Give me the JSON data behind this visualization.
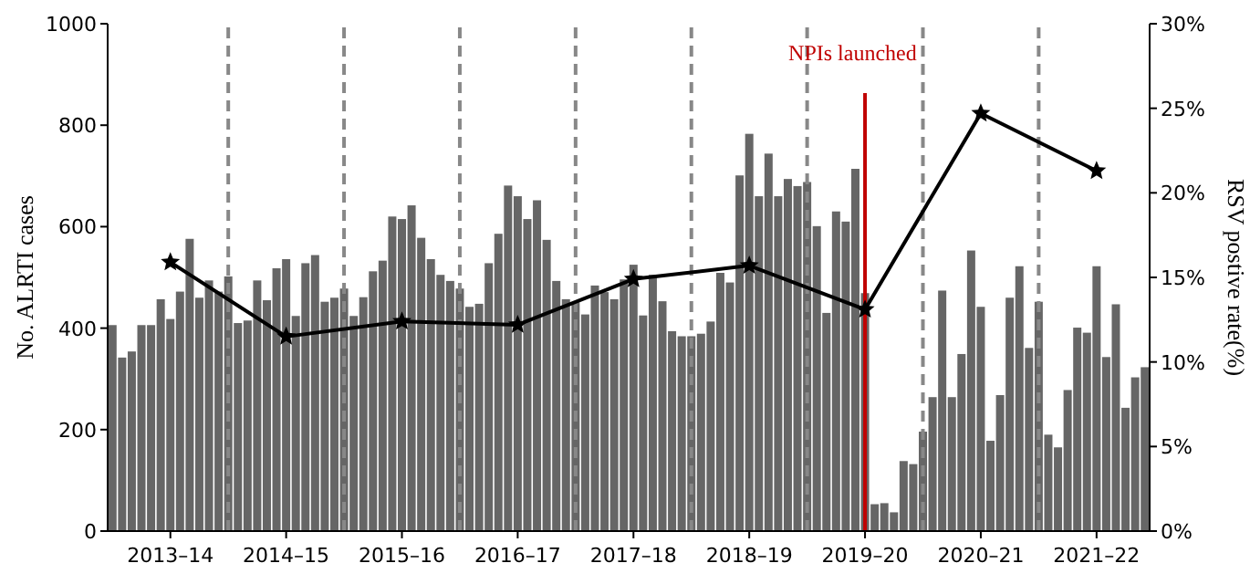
{
  "chart_data": {
    "type": "bar",
    "ylabel": "No. ALRTI cases",
    "y2label": "RSV postive rate(%)",
    "categories": [
      null,
      null,
      null,
      null,
      null,
      null,
      "2013–14",
      null,
      null,
      null,
      null,
      null,
      null,
      null,
      null,
      null,
      null,
      null,
      "2014–15",
      null,
      null,
      null,
      null,
      null,
      null,
      null,
      null,
      null,
      null,
      null,
      "2015–16",
      null,
      null,
      null,
      null,
      null,
      null,
      null,
      null,
      null,
      null,
      null,
      "2016–17",
      null,
      null,
      null,
      null,
      null,
      null,
      null,
      null,
      null,
      null,
      null,
      "2017–18",
      null,
      null,
      null,
      null,
      null,
      null,
      null,
      null,
      null,
      null,
      null,
      "2018–19",
      null,
      null,
      null,
      null,
      null,
      null,
      null,
      null,
      null,
      null,
      null,
      "2019–20",
      null,
      null,
      null,
      null,
      null,
      null,
      null,
      null,
      null,
      null,
      null,
      "2020–21",
      null,
      null,
      null,
      null,
      null,
      null,
      null,
      null,
      null,
      null,
      null,
      "2021–22",
      null,
      null,
      null,
      null,
      null
    ],
    "ylim": [
      0,
      1000
    ],
    "yticks": [
      0,
      200,
      400,
      600,
      800,
      1000
    ],
    "y2lim": [
      0,
      30
    ],
    "y2ticks": [
      {
        "value": 0,
        "label": "0%"
      },
      {
        "value": 5,
        "label": "5%"
      },
      {
        "value": 10,
        "label": "10%"
      },
      {
        "value": 15,
        "label": "15%"
      },
      {
        "value": 20,
        "label": "20%"
      },
      {
        "value": 25,
        "label": "25%"
      },
      {
        "value": 30,
        "label": "30%"
      }
    ],
    "grid": "x",
    "series": [
      {
        "color": "#666666",
        "values": [
          406,
          342,
          354,
          406,
          406,
          457,
          418,
          472,
          576,
          460,
          494,
          472,
          502,
          410,
          415,
          494,
          455,
          518,
          536,
          424,
          528,
          544,
          452,
          460,
          478,
          424,
          461,
          512,
          533,
          620,
          615,
          642,
          578,
          536,
          505,
          493,
          478,
          442,
          448,
          528,
          586,
          681,
          660,
          615,
          652,
          574,
          493,
          457,
          451,
          427,
          484,
          471,
          457,
          496,
          525,
          425,
          505,
          453,
          394,
          384,
          384,
          389,
          413,
          509,
          490,
          701,
          783,
          660,
          744,
          660,
          694,
          680,
          688,
          601,
          430,
          630,
          610,
          714,
          469,
          53,
          55,
          37,
          138,
          132,
          196,
          264,
          474,
          264,
          349,
          553,
          442,
          178,
          268,
          460,
          522,
          361,
          452,
          190,
          165,
          278,
          401,
          391,
          522,
          343,
          447,
          243,
          303,
          323
        ]
      },
      {
        "type": "line",
        "axis": "y2",
        "color": "#000000",
        "marker": "star",
        "line_style": "solid",
        "x": [
          "2013–14",
          "2014–15",
          "2015–16",
          "2016–17",
          "2017–18",
          "2018–19",
          "2019–20",
          "2020–21",
          "2021–22"
        ],
        "values": [
          15.9,
          11.5,
          12.4,
          12.2,
          14.9,
          15.7,
          13.1,
          24.7,
          21.3
        ]
      }
    ],
    "ref_lines": [
      {
        "axis": "x",
        "value": "2019–20",
        "color": "#c00000",
        "line_style": "solid",
        "label": "NPIs launched"
      }
    ]
  }
}
